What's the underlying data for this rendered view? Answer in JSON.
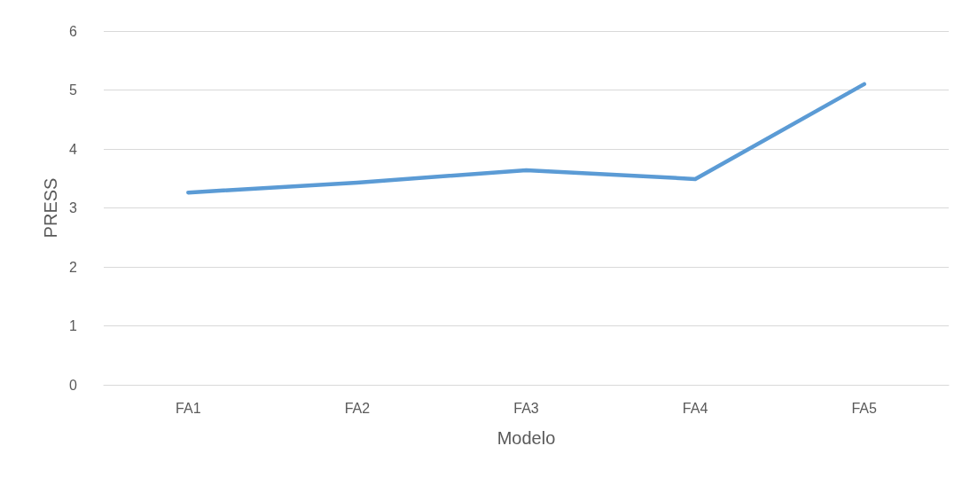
{
  "chart_data": {
    "type": "line",
    "xlabel": "Modelo",
    "ylabel": "PRESS",
    "categories": [
      "FA1",
      "FA2",
      "FA3",
      "FA4",
      "FA5"
    ],
    "series": [
      {
        "color": "#5b9bd5",
        "values": [
          3.26,
          3.43,
          3.64,
          3.49,
          5.1
        ]
      }
    ],
    "ylim": [
      0,
      6
    ],
    "yticks": [
      0,
      1,
      2,
      3,
      4,
      5,
      6
    ],
    "grid": "y",
    "marker": "none",
    "line_style": "solid"
  }
}
